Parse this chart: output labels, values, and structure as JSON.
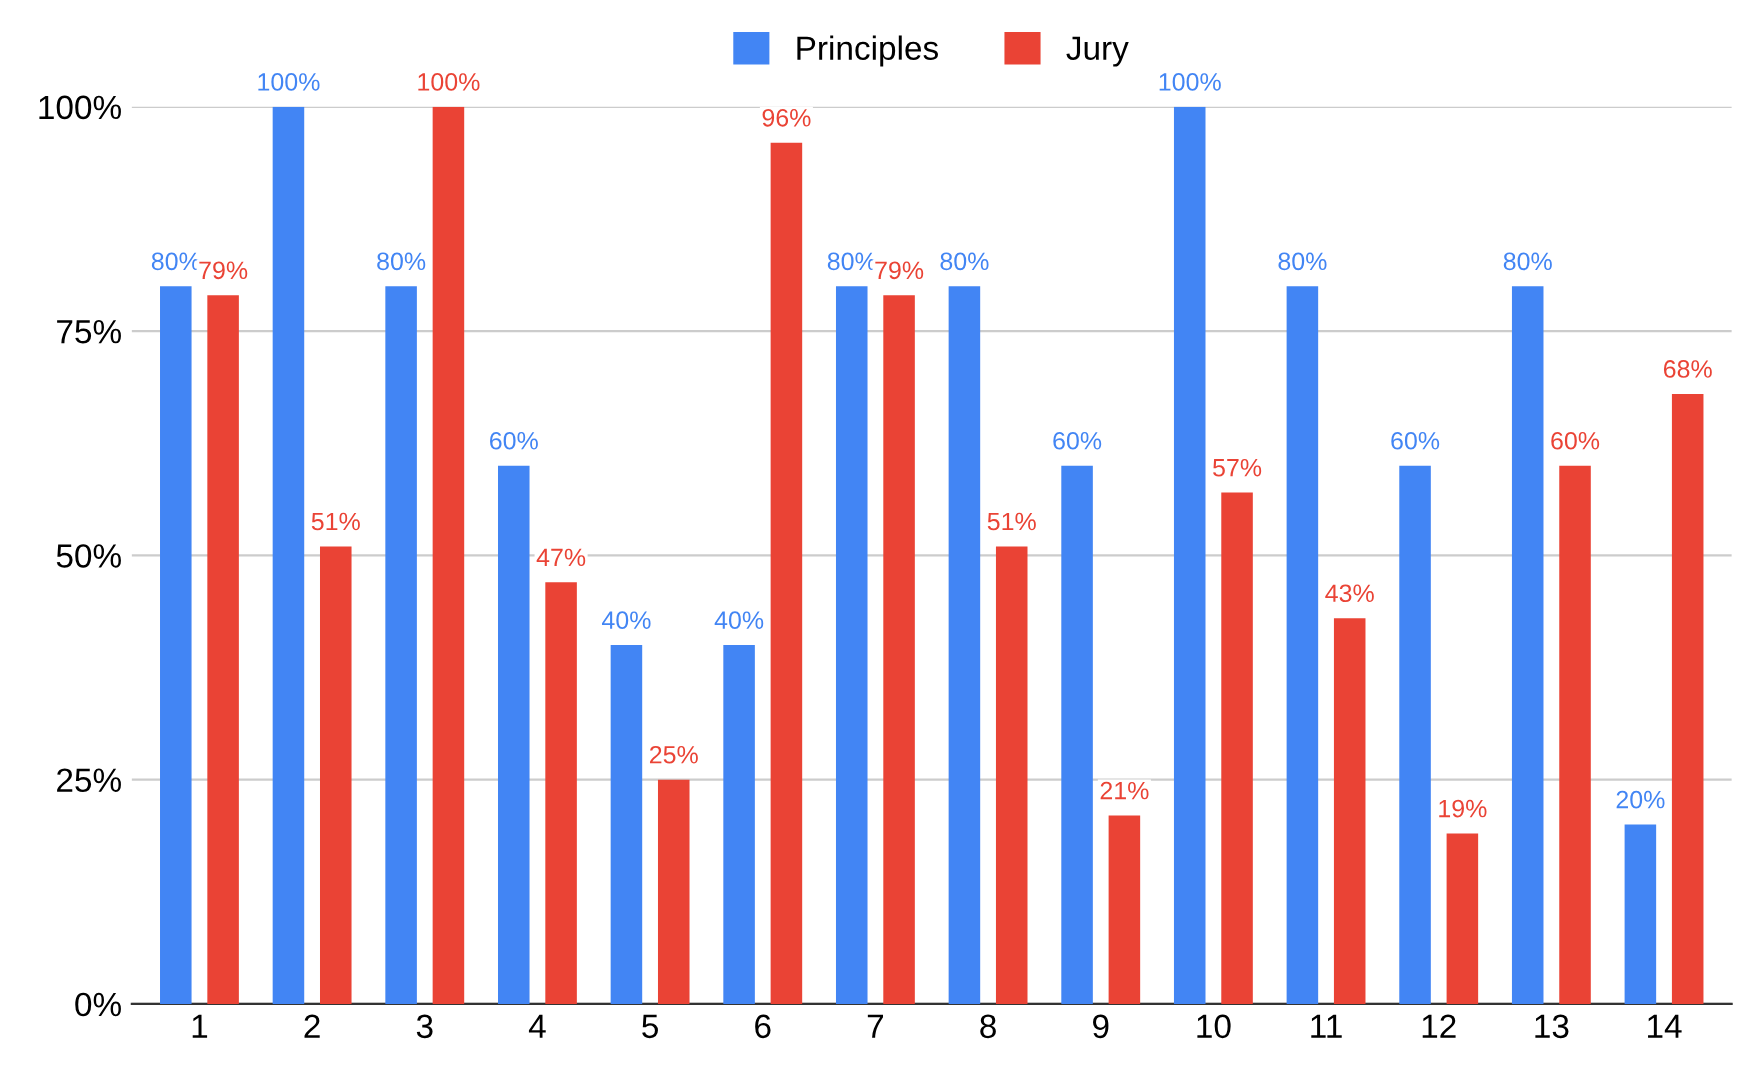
{
  "chart_data": {
    "type": "bar",
    "categories": [
      "1",
      "2",
      "3",
      "4",
      "5",
      "6",
      "7",
      "8",
      "9",
      "10",
      "11",
      "12",
      "13",
      "14"
    ],
    "series": [
      {
        "name": "Principles",
        "color": "#4285f4",
        "values": [
          80,
          100,
          80,
          60,
          40,
          40,
          80,
          80,
          60,
          100,
          80,
          60,
          80,
          20
        ],
        "value_labels": [
          "80%",
          "100%",
          "80%",
          "60%",
          "40%",
          "40%",
          "80%",
          "80%",
          "60%",
          "100%",
          "80%",
          "60%",
          "80%",
          "20%"
        ]
      },
      {
        "name": "Jury",
        "color": "#ea4335",
        "values": [
          79,
          51,
          100,
          47,
          25,
          96,
          79,
          51,
          21,
          57,
          43,
          19,
          60,
          68
        ],
        "value_labels": [
          "79%",
          "51%",
          "100%",
          "47%",
          "25%",
          "96%",
          "79%",
          "51%",
          "21%",
          "57%",
          "43%",
          "19%",
          "60%",
          "68%"
        ]
      }
    ],
    "ylim": [
      0,
      100
    ],
    "yticks": [
      {
        "value": 0,
        "label": "0%"
      },
      {
        "value": 25,
        "label": "25%"
      },
      {
        "value": 50,
        "label": "50%"
      },
      {
        "value": 75,
        "label": "75%"
      },
      {
        "value": 100,
        "label": "100%"
      }
    ],
    "grid": "y",
    "legend": "top"
  }
}
